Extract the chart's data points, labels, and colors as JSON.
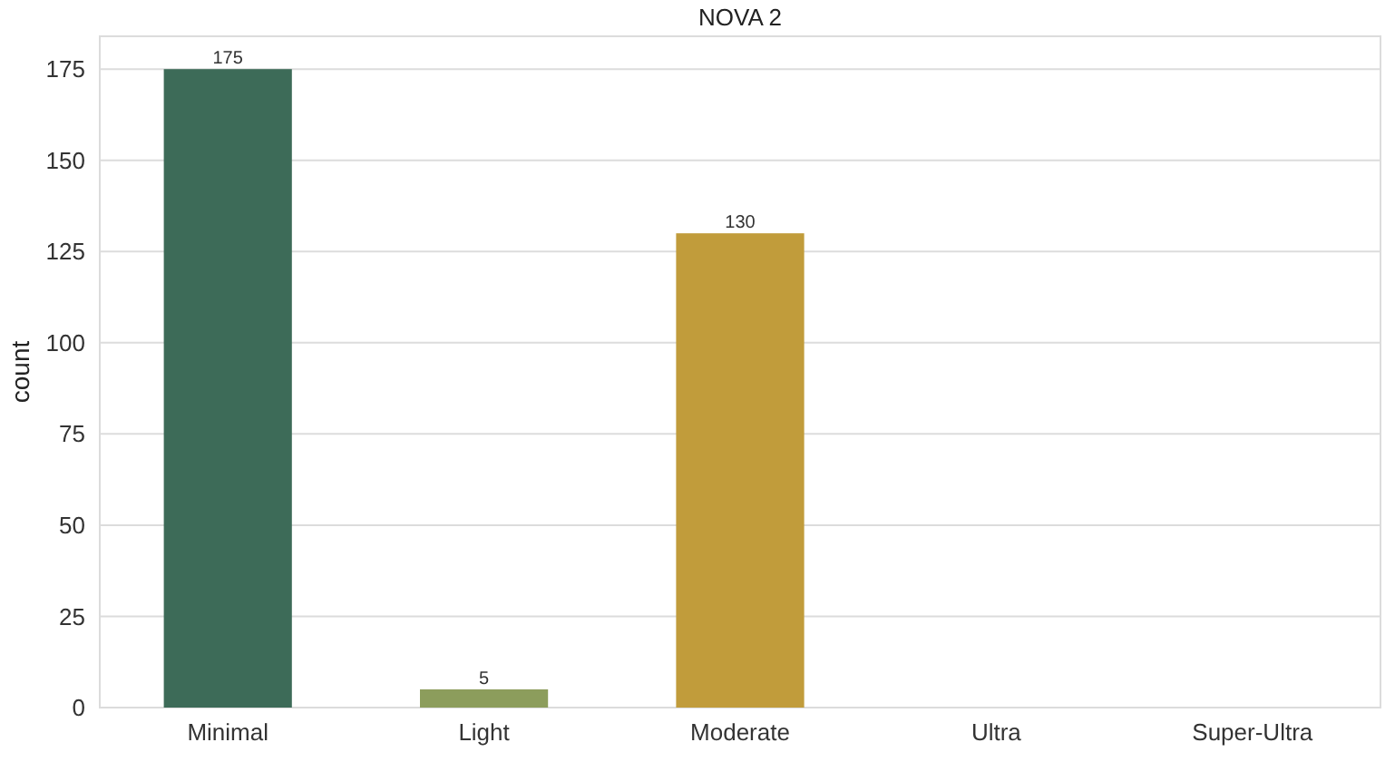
{
  "chart_data": {
    "type": "bar",
    "title": "NOVA 2",
    "ylabel": "count",
    "categories": [
      "Minimal",
      "Light",
      "Moderate",
      "Ultra",
      "Super-Ultra"
    ],
    "values": [
      175,
      5,
      130,
      0,
      0
    ],
    "colors": [
      "#3d6b58",
      "#8c9d5c",
      "#c19c3b",
      "#b5653a",
      "#8a4a3a"
    ],
    "value_labels": [
      "175",
      "5",
      "130",
      null,
      null
    ],
    "ylim": [
      0,
      184
    ],
    "yticks": [
      0,
      25,
      50,
      75,
      100,
      125,
      150,
      175
    ],
    "grid": "y"
  }
}
